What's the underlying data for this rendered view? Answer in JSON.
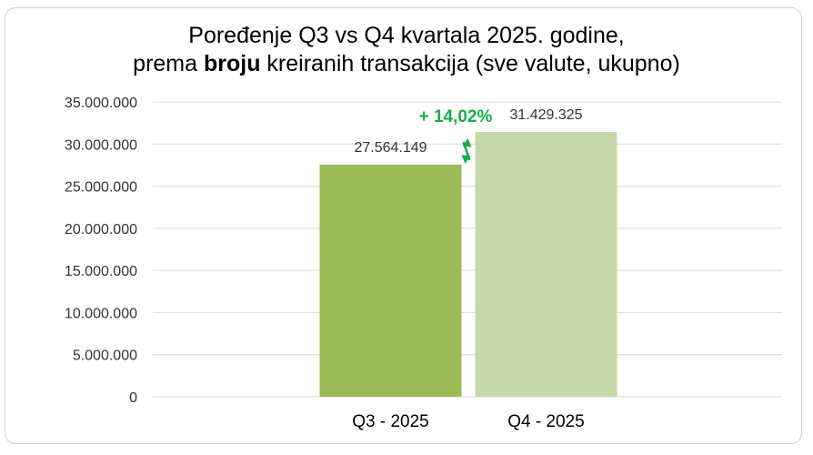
{
  "chart_data": {
    "type": "bar",
    "title_line1": "Poređenje Q3 vs Q4 kvartala 2025. godine,",
    "title_line2_pre": "prema ",
    "title_line2_bold": "broju",
    "title_line2_post": " kreiranih transakcija (sve valute, ukupno)",
    "categories": [
      "Q3 - 2025",
      "Q4 - 2025"
    ],
    "values": [
      27564149,
      31429325
    ],
    "value_labels": [
      "27.564.149",
      "31.429.325"
    ],
    "ylim": [
      0,
      35000000
    ],
    "yticks": [
      0,
      5000000,
      10000000,
      15000000,
      20000000,
      25000000,
      30000000,
      35000000
    ],
    "ytick_labels": [
      "0",
      "5.000.000",
      "10.000.000",
      "15.000.000",
      "20.000.000",
      "25.000.000",
      "30.000.000",
      "35.000.000"
    ],
    "grid": true,
    "legend": "none",
    "change_annotation": "+ 14,02%",
    "colors": {
      "bars": [
        "#9bbb59",
        "#c6d7aa"
      ],
      "annotation": "#1aab4b",
      "grid": "#d9d9d9"
    }
  }
}
